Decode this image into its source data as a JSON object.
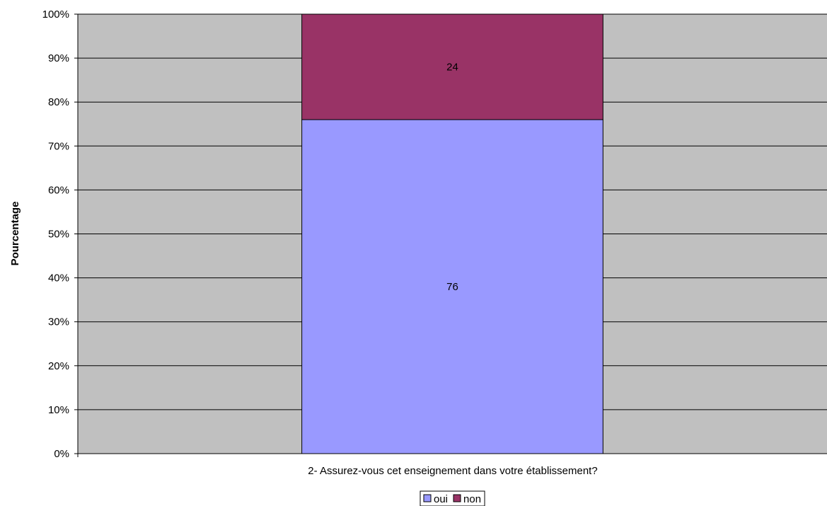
{
  "chart_data": {
    "type": "bar",
    "stacked": "percent",
    "categories": [
      "2- Assurez-vous cet enseignement dans votre établissement?"
    ],
    "series": [
      {
        "name": "oui",
        "values": [
          76
        ],
        "color": "#9999ff"
      },
      {
        "name": "non",
        "values": [
          24
        ],
        "color": "#993366"
      }
    ],
    "title": "",
    "xlabel": "",
    "ylabel": "Pourcentage",
    "ylim": [
      0,
      100
    ],
    "y_ticks": [
      "0%",
      "10%",
      "20%",
      "30%",
      "40%",
      "50%",
      "60%",
      "70%",
      "80%",
      "90%",
      "100%"
    ],
    "grid": true,
    "legend_position": "bottom",
    "plot_background": "#c0c0c0"
  }
}
